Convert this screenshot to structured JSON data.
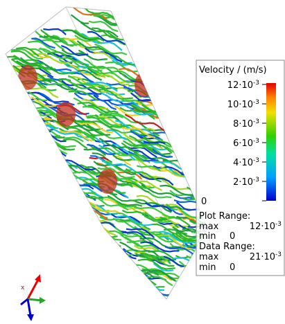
{
  "legend": {
    "title": "Velocity / (m/s)",
    "ticks": [
      {
        "mantissa": "12·10",
        "exponent": "-3"
      },
      {
        "mantissa": "10·10",
        "exponent": "-3"
      },
      {
        "mantissa": "8·10",
        "exponent": "-3"
      },
      {
        "mantissa": "6·10",
        "exponent": "-3"
      },
      {
        "mantissa": "4·10",
        "exponent": "-3"
      },
      {
        "mantissa": "2·10",
        "exponent": "-3"
      },
      "0"
    ],
    "plot_range": {
      "label": "Plot Range:",
      "max_label": "max",
      "max": {
        "mantissa": "12·10",
        "exponent": "-3"
      },
      "min_label": "min",
      "min": "0"
    },
    "data_range": {
      "label": "Data Range:",
      "max_label": "max",
      "max": {
        "mantissa": "21·10",
        "exponent": "-3"
      },
      "min_label": "min",
      "min": "0"
    }
  }
}
